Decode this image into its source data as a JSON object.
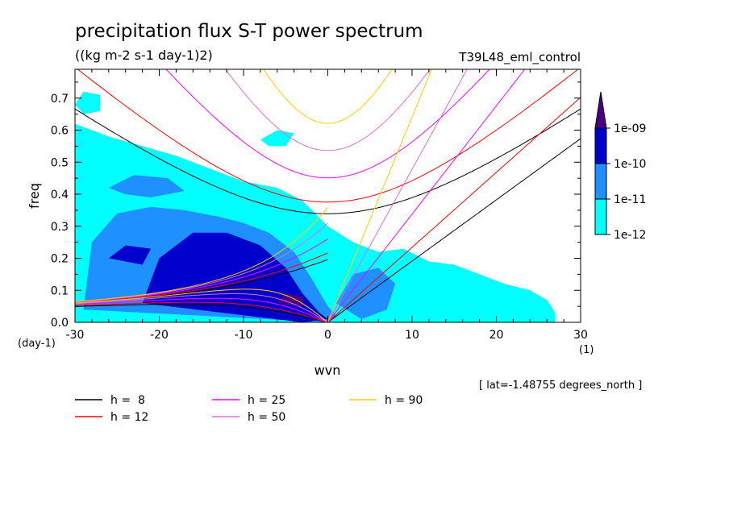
{
  "chart_data": {
    "type": "heatmap",
    "title": "precipitation flux S-T power spectrum",
    "subtitle": "((kg m-2 s-1 day-1)2)",
    "run_label": "T39L48_eml_control",
    "xlabel": "wvn",
    "ylabel": "freq",
    "x_unit": "(1)",
    "y_unit": "(day-1)",
    "lat_note": "[ lat=-1.48755 degrees_north ]",
    "xlim": [
      -30,
      30
    ],
    "ylim": [
      0,
      0.79
    ],
    "x_ticks": [
      -30,
      -20,
      -10,
      0,
      10,
      20,
      30
    ],
    "x_tick_labels": [
      "-30",
      "-20",
      "-10",
      "0",
      "10",
      "20",
      "30"
    ],
    "y_ticks": [
      0,
      0.1,
      0.2,
      0.3,
      0.4,
      0.5,
      0.6,
      0.7
    ],
    "y_tick_labels": [
      "0.0",
      "0.1",
      "0.2",
      "0.3",
      "0.4",
      "0.5",
      "0.6",
      "0.7"
    ],
    "colorbar": {
      "levels": [
        "1e-12",
        "1e-11",
        "1e-10",
        "1e-09"
      ],
      "colors": [
        "#00ffff",
        "#1e90ff",
        "#0000cd",
        "#4b0082"
      ]
    },
    "legend": [
      {
        "label": "h =  8",
        "color": "#000000"
      },
      {
        "label": "h = 12",
        "color": "#ff0000"
      },
      {
        "label": "h = 25",
        "color": "#ff00ff"
      },
      {
        "label": "h = 50",
        "color": "#da70d6"
      },
      {
        "label": "h = 90",
        "color": "#ffcc00"
      }
    ],
    "series": [
      {
        "name": "h =  8",
        "h": 8,
        "color": "#000000"
      },
      {
        "name": "h = 12",
        "h": 12,
        "color": "#ff0000"
      },
      {
        "name": "h = 25",
        "h": 25,
        "color": "#ff00ff"
      },
      {
        "name": "h = 50",
        "h": 50,
        "color": "#da70d6"
      },
      {
        "name": "h = 90",
        "h": 90,
        "color": "#ffcc00"
      }
    ],
    "intensity_regions": [
      {
        "level": "1e-12",
        "polygon": [
          [
            -30,
            0
          ],
          [
            -30,
            0.62
          ],
          [
            -26,
            0.58
          ],
          [
            -22,
            0.55
          ],
          [
            -18,
            0.52
          ],
          [
            -14,
            0.48
          ],
          [
            -10,
            0.44
          ],
          [
            -6,
            0.42
          ],
          [
            -3,
            0.38
          ],
          [
            0,
            0.3
          ],
          [
            3,
            0.25
          ],
          [
            6,
            0.22
          ],
          [
            9,
            0.23
          ],
          [
            12,
            0.19
          ],
          [
            15,
            0.18
          ],
          [
            18,
            0.15
          ],
          [
            21,
            0.12
          ],
          [
            24,
            0.1
          ],
          [
            26,
            0.07
          ],
          [
            27,
            0.03
          ],
          [
            27,
            0
          ]
        ]
      },
      {
        "level": "1e-12",
        "polygon": [
          [
            -30,
            0.68
          ],
          [
            -29,
            0.72
          ],
          [
            -27,
            0.71
          ],
          [
            -27,
            0.66
          ],
          [
            -29,
            0.65
          ]
        ]
      },
      {
        "level": "1e-12",
        "polygon": [
          [
            -8,
            0.57
          ],
          [
            -6,
            0.6
          ],
          [
            -4,
            0.59
          ],
          [
            -5,
            0.55
          ],
          [
            -7,
            0.55
          ]
        ]
      },
      {
        "level": "1e-11",
        "polygon": [
          [
            -29,
            0.04
          ],
          [
            -28,
            0.25
          ],
          [
            -25,
            0.34
          ],
          [
            -21,
            0.36
          ],
          [
            -17,
            0.35
          ],
          [
            -13,
            0.33
          ],
          [
            -10,
            0.31
          ],
          [
            -7,
            0.28
          ],
          [
            -4,
            0.22
          ],
          [
            -2,
            0.14
          ],
          [
            0,
            0.05
          ],
          [
            1,
            0.02
          ],
          [
            0,
            0
          ]
        ]
      },
      {
        "level": "1e-11",
        "polygon": [
          [
            -26,
            0.42
          ],
          [
            -23,
            0.46
          ],
          [
            -19,
            0.45
          ],
          [
            -17,
            0.41
          ],
          [
            -21,
            0.39
          ],
          [
            -24,
            0.4
          ]
        ]
      },
      {
        "level": "1e-11",
        "polygon": [
          [
            1,
            0.06
          ],
          [
            3,
            0.15
          ],
          [
            6,
            0.17
          ],
          [
            8,
            0.12
          ],
          [
            7,
            0.04
          ],
          [
            4,
            0.01
          ]
        ]
      },
      {
        "level": "1e-10",
        "polygon": [
          [
            -22,
            0.06
          ],
          [
            -20,
            0.2
          ],
          [
            -16,
            0.28
          ],
          [
            -12,
            0.28
          ],
          [
            -8,
            0.24
          ],
          [
            -5,
            0.17
          ],
          [
            -3,
            0.09
          ],
          [
            -1,
            0.03
          ],
          [
            0,
            0.01
          ],
          [
            -3,
            0
          ]
        ]
      },
      {
        "level": "1e-10",
        "polygon": [
          [
            -26,
            0.2
          ],
          [
            -24,
            0.24
          ],
          [
            -21,
            0.23
          ],
          [
            -22,
            0.18
          ]
        ]
      },
      {
        "level": "1e-09",
        "polygon": [
          [
            -6,
            0.06
          ],
          [
            -5,
            0.09
          ],
          [
            -3,
            0.08
          ],
          [
            -3,
            0.05
          ]
        ]
      }
    ]
  }
}
